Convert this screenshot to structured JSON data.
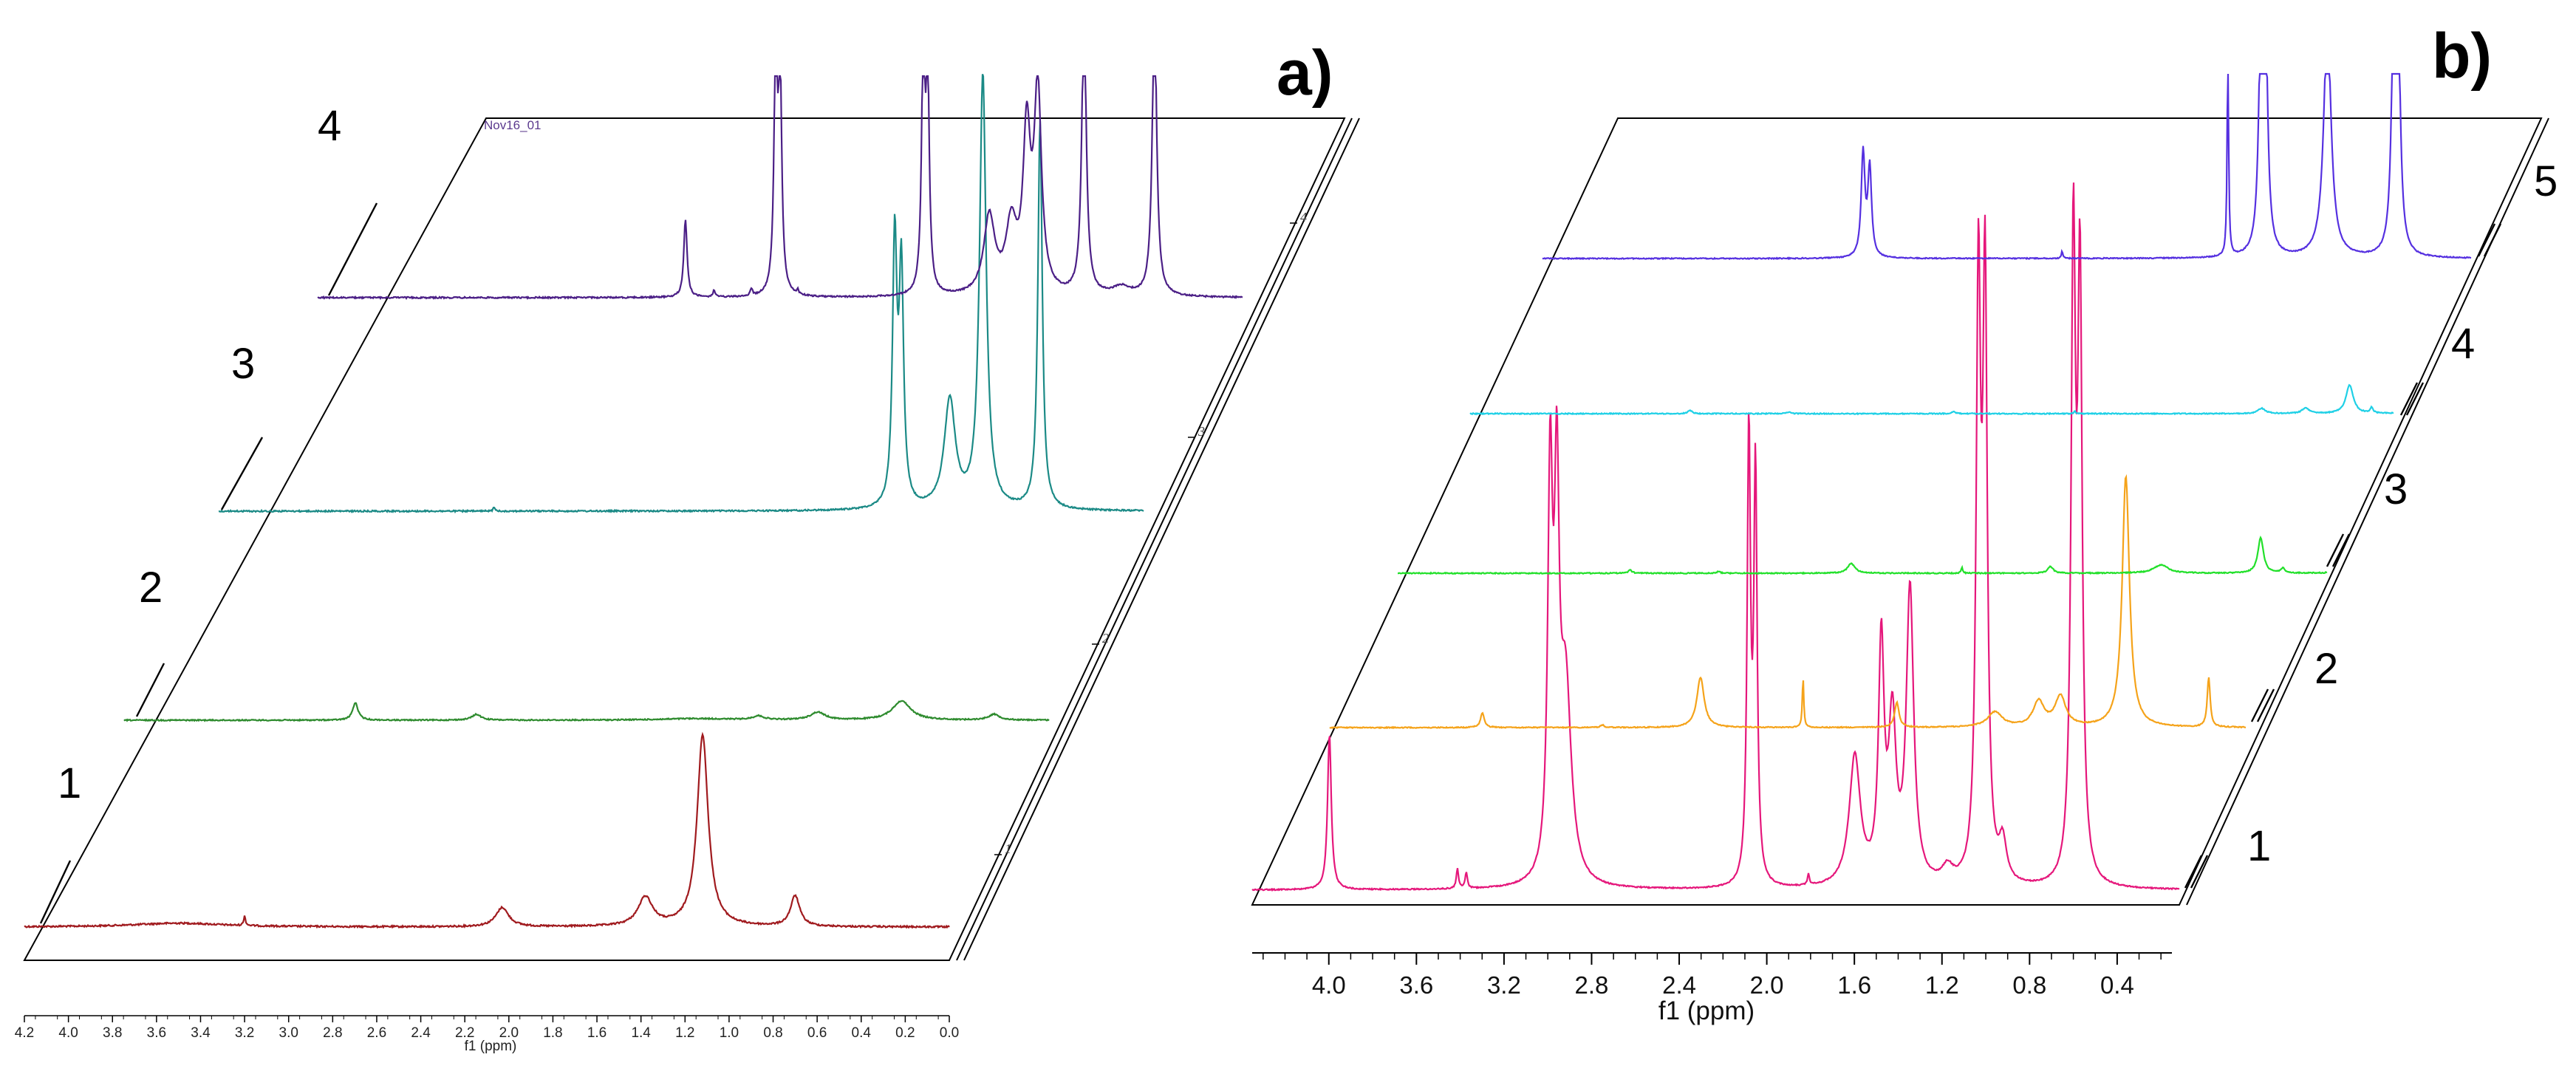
{
  "chart_data": [
    {
      "panel": "a)",
      "type": "line",
      "title": "",
      "xlabel": "f1 (ppm)",
      "ylabel": "",
      "xlim": [
        4.2,
        0.0
      ],
      "x_ticks": [
        "4.2",
        "4.0",
        "3.8",
        "3.6",
        "3.4",
        "3.2",
        "3.0",
        "2.8",
        "2.6",
        "2.4",
        "2.2",
        "2.0",
        "1.8",
        "1.6",
        "1.4",
        "1.2",
        "1.0",
        "0.8",
        "0.6",
        "0.4",
        "0.2",
        "0.0"
      ],
      "plane_ticks": [
        "1",
        "2",
        "3",
        "4"
      ],
      "annotation": "Nov16_01",
      "series": [
        {
          "name": "1",
          "color": "#a01a1e",
          "peaks": [
            [
              3.5,
              0.02,
              0.25
            ],
            [
              3.2,
              0.05,
              0.005
            ],
            [
              2.03,
              0.1,
              0.035
            ],
            [
              1.38,
              0.15,
              0.04
            ],
            [
              1.12,
              1.0,
              0.03
            ],
            [
              0.7,
              0.16,
              0.025
            ]
          ]
        },
        {
          "name": "2",
          "color": "#2e8b2e",
          "peaks": [
            [
              3.15,
              0.09,
              0.015
            ],
            [
              2.6,
              0.03,
              0.025
            ],
            [
              1.6,
              0.008,
              0.2
            ],
            [
              1.32,
              0.02,
              0.03
            ],
            [
              1.05,
              0.04,
              0.04
            ],
            [
              0.67,
              0.1,
              0.05
            ],
            [
              0.25,
              0.03,
              0.03
            ]
          ]
        },
        {
          "name": "3",
          "color": "#1b8a86",
          "peaks": [
            [
              2.95,
              0.015,
              0.004
            ],
            [
              1.13,
              0.85,
              0.012
            ],
            [
              1.1,
              0.75,
              0.012
            ],
            [
              0.88,
              0.35,
              0.03
            ],
            [
              0.73,
              1.4,
              0.018
            ],
            [
              0.47,
              1.25,
              0.012
            ]
          ]
        },
        {
          "name": "4",
          "color": "#4b1f86",
          "peaks": [
            [
              2.53,
              0.35,
              0.009
            ],
            [
              2.4,
              0.03,
              0.006
            ],
            [
              2.23,
              0.03,
              0.006
            ],
            [
              2.02,
              0.02,
              0.005
            ],
            [
              2.12,
              1.1,
              0.009
            ],
            [
              2.1,
              0.95,
              0.009
            ],
            [
              1.45,
              1.1,
              0.009
            ],
            [
              1.43,
              0.95,
              0.009
            ],
            [
              1.15,
              0.35,
              0.03
            ],
            [
              1.05,
              0.3,
              0.03
            ],
            [
              0.98,
              0.7,
              0.02
            ],
            [
              0.93,
              0.9,
              0.02
            ],
            [
              0.72,
              1.3,
              0.012
            ],
            [
              0.55,
              0.04,
              0.05
            ],
            [
              0.4,
              1.3,
              0.012
            ]
          ]
        }
      ]
    },
    {
      "panel": "b)",
      "type": "line",
      "title": "",
      "xlabel": "f1 (ppm)",
      "ylabel": "",
      "xlim": [
        4.35,
        0.15
      ],
      "x_ticks": [
        "4.0",
        "3.6",
        "3.2",
        "2.8",
        "2.4",
        "2.0",
        "1.6",
        "1.2",
        "0.8",
        "0.4"
      ],
      "plane_ticks": [
        "1",
        "2",
        "3",
        "4",
        "5"
      ],
      "series": [
        {
          "name": "1",
          "color": "#e5177b",
          "peaks": [
            [
              4.0,
              0.4,
              0.01
            ],
            [
              3.42,
              0.05,
              0.006
            ],
            [
              3.38,
              0.04,
              0.006
            ],
            [
              3.0,
              1.0,
              0.013
            ],
            [
              2.97,
              0.9,
              0.013
            ],
            [
              2.93,
              0.5,
              0.03
            ],
            [
              2.1,
              1.15,
              0.009
            ],
            [
              2.07,
              1.05,
              0.009
            ],
            [
              1.83,
              0.03,
              0.005
            ],
            [
              1.62,
              0.33,
              0.03
            ],
            [
              1.5,
              0.6,
              0.015
            ],
            [
              1.45,
              0.4,
              0.02
            ],
            [
              1.37,
              0.75,
              0.02
            ],
            [
              1.2,
              0.04,
              0.03
            ],
            [
              1.06,
              1.5,
              0.012
            ],
            [
              1.03,
              1.5,
              0.012
            ],
            [
              0.95,
              0.1,
              0.02
            ],
            [
              0.63,
              1.6,
              0.012
            ],
            [
              0.6,
              1.5,
              0.012
            ]
          ]
        },
        {
          "name": "2",
          "color": "#f5a31a",
          "peaks": [
            [
              3.65,
              0.06,
              0.01
            ],
            [
              3.1,
              0.01,
              0.01
            ],
            [
              2.65,
              0.2,
              0.02
            ],
            [
              2.18,
              0.2,
              0.004
            ],
            [
              1.75,
              0.1,
              0.012
            ],
            [
              1.3,
              0.06,
              0.04
            ],
            [
              1.1,
              0.1,
              0.03
            ],
            [
              1.0,
              0.12,
              0.03
            ],
            [
              0.7,
              1.0,
              0.02
            ],
            [
              0.32,
              0.2,
              0.008
            ]
          ]
        },
        {
          "name": "3",
          "color": "#22e02a",
          "peaks": [
            [
              3.3,
              0.02,
              0.01
            ],
            [
              2.9,
              0.01,
              0.01
            ],
            [
              2.3,
              0.06,
              0.02
            ],
            [
              1.8,
              0.04,
              0.004
            ],
            [
              1.4,
              0.04,
              0.015
            ],
            [
              0.9,
              0.05,
              0.04
            ],
            [
              0.45,
              0.22,
              0.015
            ],
            [
              0.35,
              0.03,
              0.01
            ],
            [
              0.1,
              0.11,
              0.01
            ]
          ]
        },
        {
          "name": "4",
          "color": "#1fd0e6",
          "peaks": [
            [
              3.35,
              0.02,
              0.01
            ],
            [
              2.9,
              0.01,
              0.01
            ],
            [
              2.15,
              0.01,
              0.01
            ],
            [
              1.6,
              0.015,
              0.004
            ],
            [
              0.75,
              0.03,
              0.02
            ],
            [
              0.55,
              0.03,
              0.02
            ],
            [
              0.35,
              0.16,
              0.02
            ],
            [
              0.25,
              0.03,
              0.008
            ],
            [
              0.05,
              0.1,
              0.015
            ]
          ]
        },
        {
          "name": "5",
          "color": "#5530e0",
          "peaks": [
            [
              2.9,
              0.7,
              0.01
            ],
            [
              2.87,
              0.6,
              0.01
            ],
            [
              2.0,
              0.05,
              0.004
            ],
            [
              1.25,
              1.4,
              0.004
            ],
            [
              1.1,
              1.5,
              0.012
            ],
            [
              1.08,
              1.4,
              0.012
            ],
            [
              0.8,
              1.6,
              0.02
            ],
            [
              0.5,
              1.5,
              0.012
            ],
            [
              0.48,
              1.4,
              0.012
            ]
          ]
        }
      ]
    }
  ],
  "labels": {
    "panel_a": "a)",
    "panel_b": "b)",
    "xlabel_a": "f1 (ppm)",
    "xlabel_b": "f1 (ppm)",
    "a_trace_numbers": [
      "1",
      "2",
      "3",
      "4"
    ],
    "b_trace_numbers": [
      "1",
      "2",
      "3",
      "4",
      "5"
    ],
    "a_annotation": "Nov16_01"
  }
}
